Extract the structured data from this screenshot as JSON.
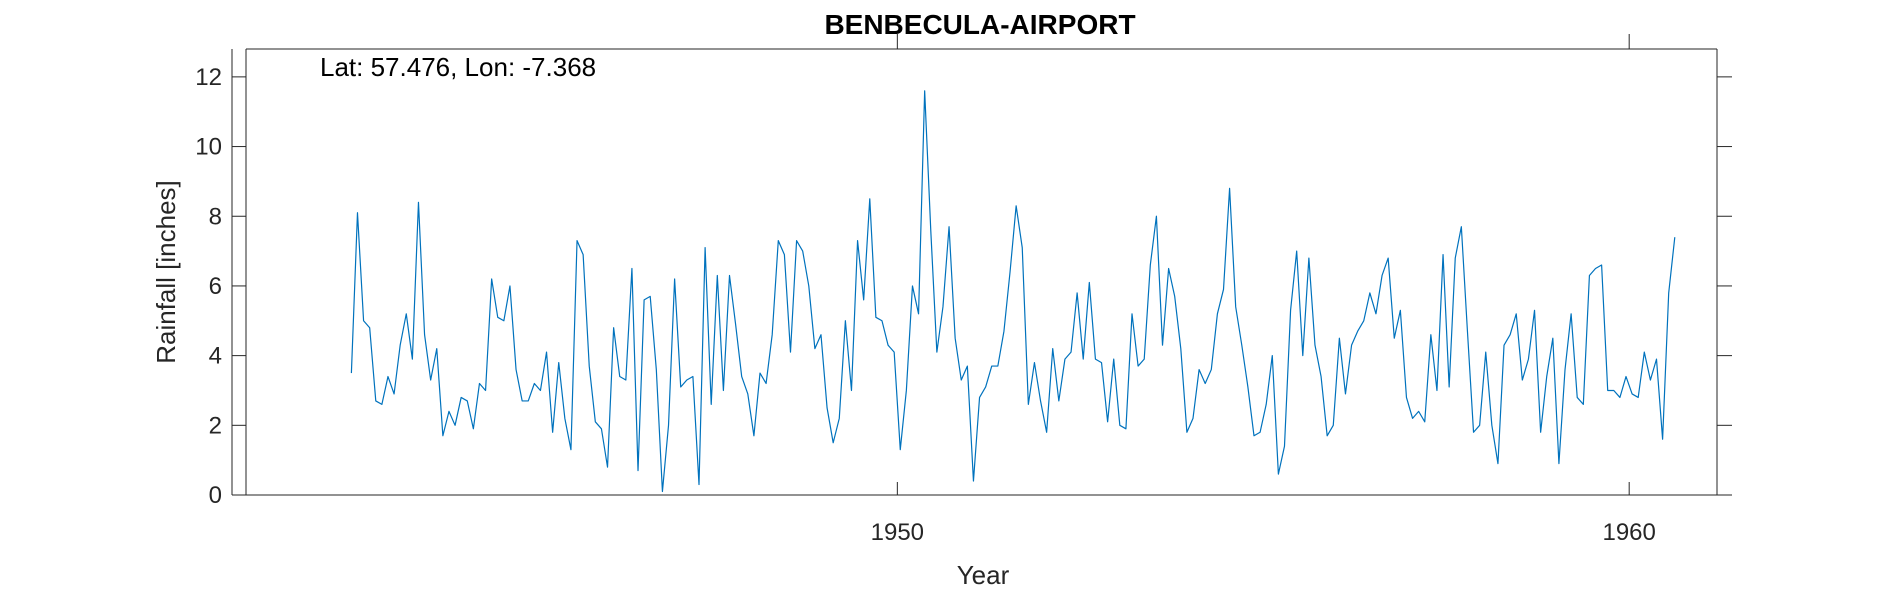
{
  "chart_data": {
    "type": "line",
    "title": "BENBECULA-AIRPORT",
    "annotation": "Lat: 57.476, Lon: -7.368",
    "xlabel": "Year",
    "ylabel": "Rainfall [inches]",
    "xlim": [
      1941.1,
      1961.2
    ],
    "ylim": [
      0,
      12.8
    ],
    "x_ticks": [
      1950,
      1960
    ],
    "y_ticks": [
      0,
      2,
      4,
      6,
      8,
      10,
      12
    ],
    "grid": false,
    "series": [
      {
        "color": "#0072BD",
        "x_start": 1942.54,
        "x_step": 0.0833333,
        "values": [
          3.5,
          8.1,
          5.0,
          4.8,
          2.7,
          2.6,
          3.4,
          2.9,
          4.3,
          5.2,
          3.9,
          8.4,
          4.6,
          3.3,
          4.2,
          1.7,
          2.4,
          2.0,
          2.8,
          2.7,
          1.9,
          3.2,
          3.0,
          6.2,
          5.1,
          5.0,
          6.0,
          3.6,
          2.7,
          2.7,
          3.2,
          3.0,
          4.1,
          1.8,
          3.8,
          2.2,
          1.3,
          7.3,
          6.9,
          3.7,
          2.1,
          1.9,
          0.8,
          4.8,
          3.4,
          3.3,
          6.5,
          0.7,
          5.6,
          5.7,
          3.6,
          0.1,
          2.0,
          6.2,
          3.1,
          3.3,
          3.4,
          0.3,
          7.1,
          2.6,
          6.3,
          3.0,
          6.3,
          4.9,
          3.4,
          2.9,
          1.7,
          3.5,
          3.2,
          4.6,
          7.3,
          6.9,
          4.1,
          7.3,
          7.0,
          6.0,
          4.2,
          4.6,
          2.5,
          1.5,
          2.2,
          5.0,
          3.0,
          7.3,
          5.6,
          8.5,
          5.1,
          5.0,
          4.3,
          4.1,
          1.3,
          3.0,
          6.0,
          5.2,
          11.6,
          7.6,
          4.1,
          5.4,
          7.7,
          4.5,
          3.3,
          3.7,
          0.4,
          2.8,
          3.1,
          3.7,
          3.7,
          4.7,
          6.4,
          8.3,
          7.1,
          2.6,
          3.8,
          2.7,
          1.8,
          4.2,
          2.7,
          3.9,
          4.1,
          5.8,
          3.9,
          6.1,
          3.9,
          3.8,
          2.1,
          3.9,
          2.0,
          1.9,
          5.2,
          3.7,
          3.9,
          6.6,
          8.0,
          4.3,
          6.5,
          5.7,
          4.2,
          1.8,
          2.2,
          3.6,
          3.2,
          3.6,
          5.2,
          5.9,
          8.8,
          5.4,
          4.3,
          3.1,
          1.7,
          1.8,
          2.6,
          4.0,
          0.6,
          1.4,
          5.3,
          7.0,
          4.0,
          6.8,
          4.3,
          3.4,
          1.7,
          2.0,
          4.5,
          2.9,
          4.3,
          4.7,
          5.0,
          5.8,
          5.2,
          6.3,
          6.8,
          4.5,
          5.3,
          2.8,
          2.2,
          2.4,
          2.1,
          4.6,
          3.0,
          6.9,
          3.1,
          6.8,
          7.7,
          4.7,
          1.8,
          2.0,
          4.1,
          2.0,
          0.9,
          4.3,
          4.6,
          5.2,
          3.3,
          3.9,
          5.3,
          1.8,
          3.4,
          4.5,
          0.9,
          3.6,
          5.2,
          2.8,
          2.6,
          6.3,
          6.5,
          6.6,
          3.0,
          3.0,
          2.8,
          3.4,
          2.9,
          2.8,
          4.1,
          3.3,
          3.9,
          1.6,
          5.8,
          7.4
        ]
      }
    ]
  }
}
